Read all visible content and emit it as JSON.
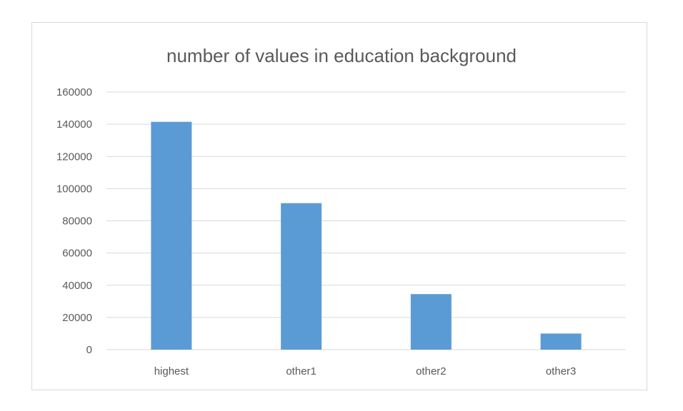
{
  "chart_data": {
    "type": "bar",
    "title": "number of values in education background",
    "categories": [
      "highest",
      "other1",
      "other2",
      "other3"
    ],
    "values": [
      141500,
      91000,
      34500,
      10000
    ],
    "ylim": [
      0,
      160000
    ],
    "yticks": [
      "0",
      "20000",
      "40000",
      "60000",
      "80000",
      "100000",
      "120000",
      "140000",
      "160000"
    ],
    "grid": true,
    "legend": "none",
    "bar_color": "#5b9bd5",
    "grid_color": "#d9d9d9"
  }
}
